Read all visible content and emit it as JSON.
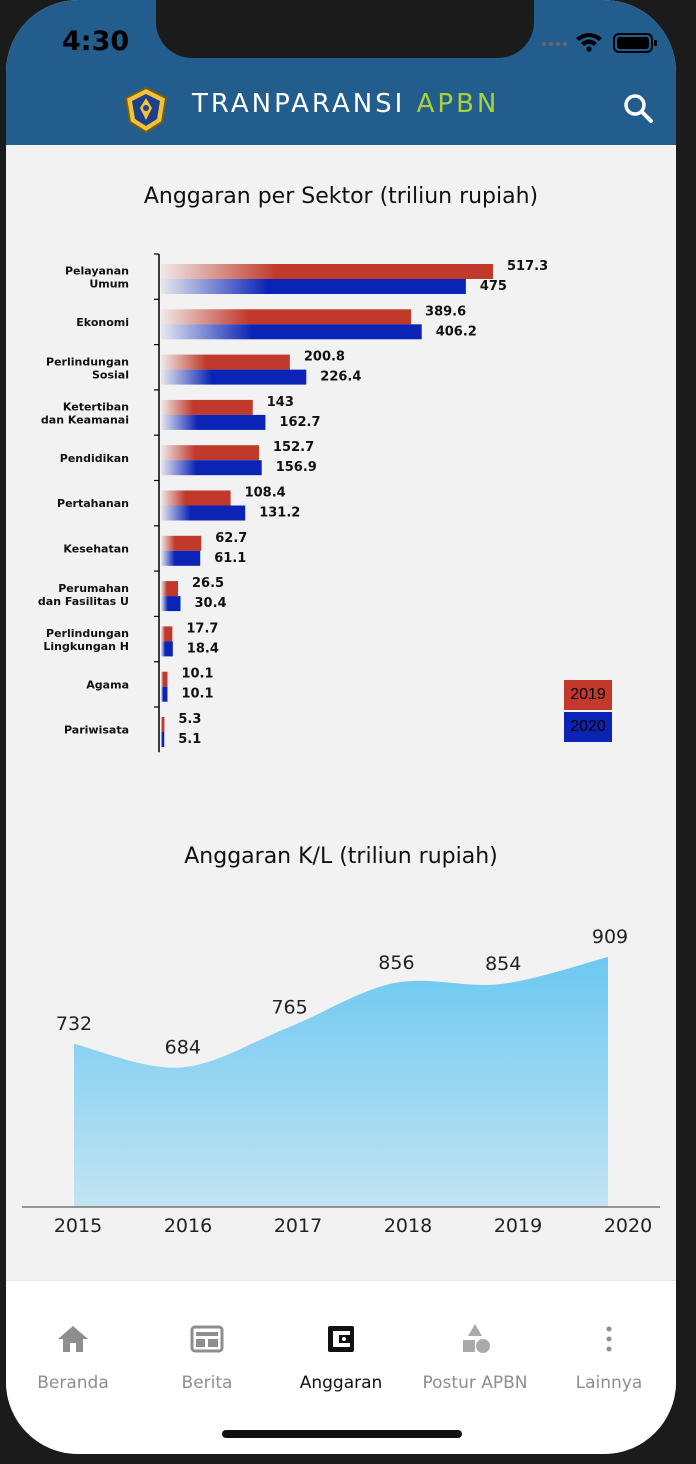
{
  "status_bar": {
    "time": "4:30"
  },
  "header": {
    "title_main": "TRANPARANSI ",
    "title_accent": "APBN",
    "icons": [
      "emblem-logo",
      "search-icon"
    ]
  },
  "colors": {
    "header": "#235d8e",
    "accent": "#a8d13a",
    "series_2019": "#c0392b",
    "series_2020": "#0b24b5",
    "area": "#6cc8f2"
  },
  "sector_chart": {
    "title": "Anggaran per Sektor (triliun rupiah)"
  },
  "kl_chart": {
    "title": "Anggaran K/L (triliun rupiah)"
  },
  "chart_data": [
    {
      "type": "bar",
      "orientation": "horizontal",
      "title": "Anggaran per Sektor (triliun rupiah)",
      "categories": [
        [
          "Pelayanan",
          "Umum"
        ],
        [
          "Ekonomi"
        ],
        [
          "Perlindungan",
          "Sosial"
        ],
        [
          "Ketertiban",
          "dan Keamanai"
        ],
        [
          "Pendidikan"
        ],
        [
          "Pertahanan"
        ],
        [
          "Kesehatan"
        ],
        [
          "Perumahan",
          "dan Fasilitas U"
        ],
        [
          "Perlindungan",
          "Lingkungan H"
        ],
        [
          "Agama"
        ],
        [
          "Pariwisata"
        ]
      ],
      "series": [
        {
          "name": "2019",
          "color": "#c0392b",
          "values": [
            517.3,
            389.6,
            200.8,
            143,
            152.7,
            108.4,
            62.7,
            26.5,
            17.7,
            10.1,
            5.3
          ],
          "labels": [
            "517.3",
            "389.6",
            "200.8",
            "143",
            "152.7",
            "108.4",
            "62.7",
            "26.5",
            "17.7",
            "10.1",
            "5.3"
          ]
        },
        {
          "name": "2020",
          "color": "#0b24b5",
          "values": [
            475,
            406.2,
            226.4,
            162.7,
            156.9,
            131.2,
            61.1,
            30.4,
            18.4,
            10.1,
            5.1
          ],
          "labels": [
            "475",
            "406.2",
            "226.4",
            "162.7",
            "156.9",
            "131.2",
            "61.1",
            "30.4",
            "18.4",
            "10.1",
            "5.1"
          ]
        }
      ],
      "legend": "bottom-right"
    },
    {
      "type": "area",
      "title": "Anggaran K/L (triliun rupiah)",
      "categories": [
        "2015",
        "2016",
        "2017",
        "2018",
        "2019",
        "2020"
      ],
      "values": [
        732,
        684,
        765,
        856,
        854,
        909
      ],
      "labels": [
        "732",
        "684",
        "765",
        "856",
        "854",
        "909"
      ],
      "color": "#6cc8f2"
    }
  ],
  "tabs": [
    {
      "label": "Beranda",
      "icon": "home-icon"
    },
    {
      "label": "Berita",
      "icon": "news-icon"
    },
    {
      "label": "Anggaran",
      "icon": "wallet-icon"
    },
    {
      "label": "Postur APBN",
      "icon": "shapes-icon"
    },
    {
      "label": "Lainnya",
      "icon": "more-vertical-icon"
    }
  ]
}
